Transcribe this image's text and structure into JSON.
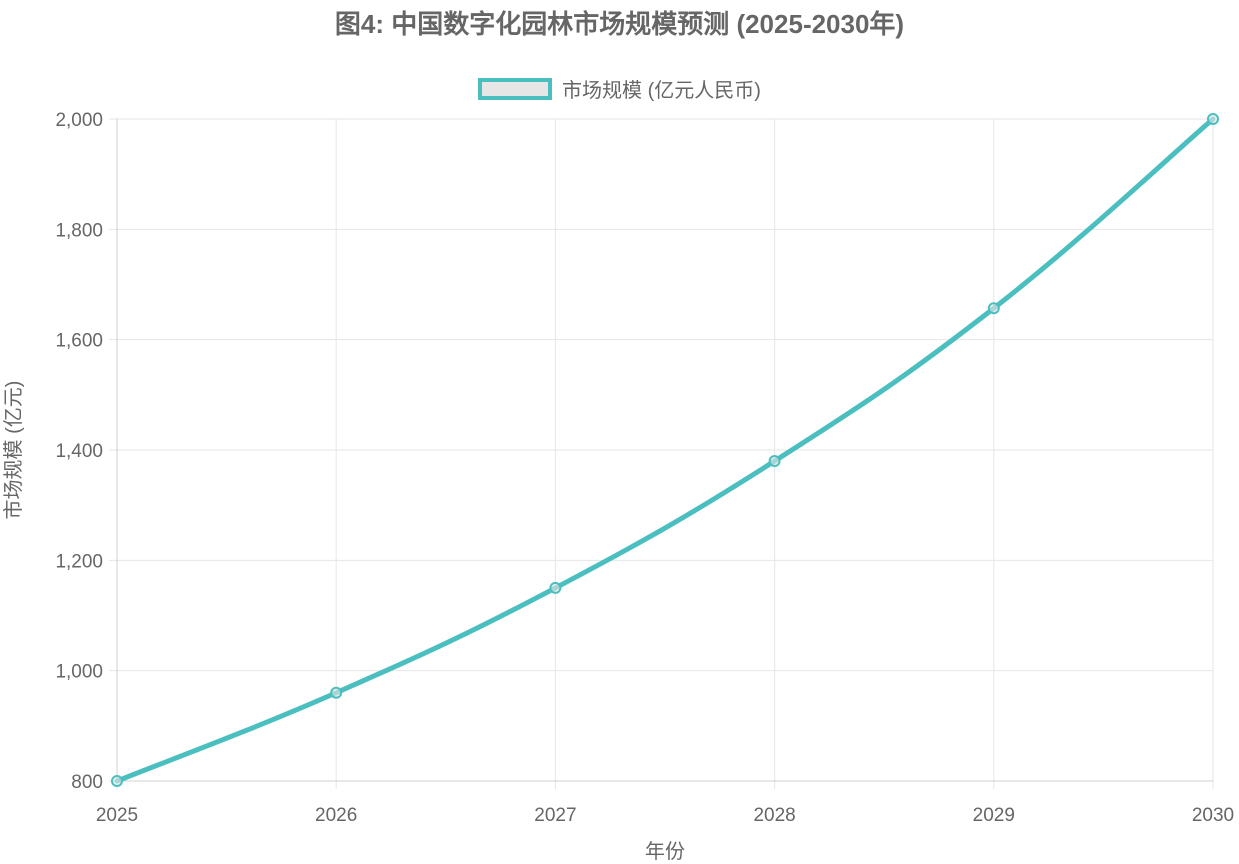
{
  "chart_data": {
    "type": "line",
    "title": "图4: 中国数字化园林市场规模预测 (2025-2030年)",
    "xlabel": "年份",
    "ylabel": "市场规模 (亿元)",
    "categories": [
      "2025",
      "2026",
      "2027",
      "2028",
      "2029",
      "2030"
    ],
    "series": [
      {
        "name": "市场规模 (亿元人民币)",
        "values": [
          800,
          960,
          1150,
          1380,
          1657,
          2000
        ],
        "color": "#4bbfbf"
      }
    ],
    "ylim": [
      800,
      2000
    ],
    "yticks": [
      "800",
      "1,000",
      "1,200",
      "1,400",
      "1,600",
      "1,800",
      "2,000"
    ],
    "grid": true,
    "legend_position": "top-center"
  },
  "colors": {
    "line": "#4bbfbf",
    "legend_fill": "#e6e6e6",
    "grid": "#e6e6e6",
    "text": "#666666"
  }
}
